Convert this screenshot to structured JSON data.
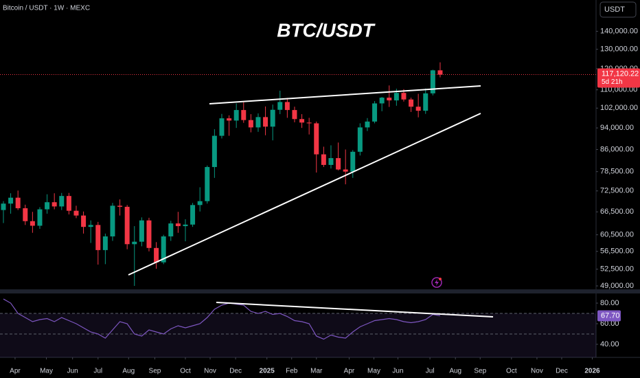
{
  "chart_data": {
    "type": "candlestick",
    "header": "Bitcoin / USDT · 1W · MEXC",
    "title": "BTC/USDT",
    "currency": "USDT",
    "log_scale": true,
    "up_color": "#089981",
    "down_color": "#f23645",
    "x": [
      0,
      1,
      2,
      3,
      4,
      5,
      6,
      7,
      8,
      9,
      10,
      11,
      12,
      13,
      14,
      15,
      16,
      17,
      18,
      19,
      20,
      21,
      22,
      23,
      24,
      25,
      26,
      27,
      28,
      29,
      30,
      31,
      32,
      33,
      34,
      35,
      36,
      37,
      38,
      39,
      40,
      41,
      42,
      43,
      44,
      45,
      46,
      47,
      48,
      49,
      50,
      51,
      52,
      53,
      54,
      55,
      56,
      57,
      58,
      59,
      60
    ],
    "open": [
      67000,
      68800,
      70500,
      67500,
      64000,
      62800,
      67200,
      69200,
      68000,
      71000,
      66800,
      65500,
      62500,
      63000,
      56800,
      60100,
      68200,
      67900,
      58200,
      58800,
      64200,
      57300,
      54000,
      60100,
      63400,
      62700,
      63100,
      68400,
      69500,
      80000,
      91000,
      97800,
      96900,
      101200,
      97100,
      94200,
      98300,
      94500,
      101300,
      104600,
      101200,
      97500,
      96100,
      95800,
      84300,
      80700,
      83000,
      79200,
      78500,
      85200,
      94200,
      96500,
      104000,
      106500,
      105300,
      108600,
      105700,
      102600,
      100900,
      108400,
      119200
    ],
    "high": [
      69500,
      71800,
      72600,
      68500,
      66500,
      67800,
      71500,
      71800,
      71900,
      71900,
      68200,
      66600,
      64200,
      63800,
      60800,
      69000,
      70000,
      68400,
      62700,
      65000,
      64900,
      58700,
      60500,
      64100,
      66500,
      64500,
      69000,
      73600,
      80500,
      93500,
      99600,
      99000,
      104000,
      104500,
      99500,
      99800,
      102700,
      103500,
      109600,
      106400,
      102600,
      99500,
      98000,
      96500,
      87000,
      87500,
      88500,
      86000,
      85800,
      95800,
      97900,
      105000,
      106800,
      112000,
      110500,
      110300,
      106500,
      108200,
      110600,
      119500,
      123200
    ],
    "low": [
      63500,
      66000,
      67000,
      63000,
      61000,
      62000,
      66000,
      67200,
      67000,
      65800,
      64800,
      60800,
      58500,
      53500,
      53600,
      59000,
      65500,
      57000,
      49000,
      57700,
      56500,
      52600,
      53600,
      59000,
      61000,
      58900,
      62500,
      66600,
      68800,
      76500,
      90000,
      91000,
      94000,
      96000,
      92300,
      92500,
      91200,
      89300,
      99500,
      98000,
      96200,
      94000,
      91500,
      78200,
      80000,
      79500,
      78900,
      74500,
      76500,
      83900,
      92800,
      95800,
      100700,
      102500,
      103000,
      104800,
      100400,
      98200,
      99600,
      107500,
      115800
    ],
    "close": [
      68800,
      70500,
      67500,
      64000,
      62800,
      67200,
      69200,
      68000,
      71000,
      66800,
      65500,
      62500,
      63000,
      56800,
      60100,
      68200,
      67900,
      58200,
      58800,
      64200,
      57300,
      54000,
      60100,
      63400,
      62700,
      63100,
      68400,
      69500,
      80000,
      91000,
      97800,
      96900,
      101200,
      97100,
      94200,
      98300,
      94500,
      101300,
      104600,
      101200,
      97500,
      96100,
      95800,
      84300,
      80700,
      83000,
      79200,
      78500,
      85200,
      94200,
      96500,
      104000,
      106500,
      105300,
      108600,
      105700,
      102600,
      100900,
      108400,
      119200,
      117120.22
    ],
    "xlim": [
      -0.47,
      81.42
    ],
    "xticks": [
      {
        "value": 1.6,
        "label": "Apr"
      },
      {
        "value": 5.9,
        "label": "May"
      },
      {
        "value": 9.5,
        "label": "Jun"
      },
      {
        "value": 13,
        "label": "Jul"
      },
      {
        "value": 17.2,
        "label": "Aug"
      },
      {
        "value": 20.8,
        "label": "Sep"
      },
      {
        "value": 25,
        "label": "Oct"
      },
      {
        "value": 28.4,
        "label": "Nov"
      },
      {
        "value": 31.9,
        "label": "Dec"
      },
      {
        "value": 36.2,
        "label": "2025"
      },
      {
        "value": 39.6,
        "label": "Feb"
      },
      {
        "value": 43,
        "label": "Mar"
      },
      {
        "value": 47.5,
        "label": "Apr"
      },
      {
        "value": 50.9,
        "label": "May"
      },
      {
        "value": 54.2,
        "label": "Jun"
      },
      {
        "value": 58.6,
        "label": "Jul"
      },
      {
        "value": 62.1,
        "label": "Aug"
      },
      {
        "value": 65.5,
        "label": "Sep"
      },
      {
        "value": 69.8,
        "label": "Oct"
      },
      {
        "value": 73.3,
        "label": "Nov"
      },
      {
        "value": 76.7,
        "label": "Dec"
      },
      {
        "value": 80.9,
        "label": "2026"
      }
    ],
    "ylim": [
      48450,
      159300
    ],
    "yticks": [
      {
        "value": 49000,
        "label": "49,000.00"
      },
      {
        "value": 52500,
        "label": "52,500.00"
      },
      {
        "value": 56500,
        "label": "56,500.00"
      },
      {
        "value": 60500,
        "label": "60,500.00"
      },
      {
        "value": 66500,
        "label": "66,500.00"
      },
      {
        "value": 72500,
        "label": "72,500.00"
      },
      {
        "value": 78500,
        "label": "78,500.00"
      },
      {
        "value": 86000,
        "label": "86,000.00"
      },
      {
        "value": 94000,
        "label": "94,000.00"
      },
      {
        "value": 102000,
        "label": "102,000.00"
      },
      {
        "value": 110000,
        "label": "110,000.00"
      },
      {
        "value": 120000,
        "label": "120,000.00"
      },
      {
        "value": 130000,
        "label": "130,000.00"
      },
      {
        "value": 140000,
        "label": "140,000.00"
      }
    ],
    "last_price": {
      "value": 117120.22,
      "label": "117,120.22",
      "countdown": "5d 21h"
    },
    "rsi": {
      "color": "#7e57c2",
      "values": [
        84,
        80,
        70,
        66,
        62,
        64,
        65,
        62,
        66,
        63,
        60,
        56,
        52,
        50,
        46,
        54,
        62,
        60,
        50,
        48,
        54,
        52,
        50,
        55,
        58,
        56,
        58,
        60,
        66,
        74,
        78,
        80,
        79,
        78,
        72,
        70,
        72,
        69,
        70,
        67,
        63,
        62,
        60,
        48,
        45,
        49,
        47,
        46,
        52,
        57,
        60,
        63,
        64,
        65,
        64,
        62,
        61,
        62,
        64,
        69,
        67.7
      ],
      "ylim": [
        27.3,
        88.7
      ],
      "yticks": [
        {
          "value": 40,
          "label": "40.00"
        },
        {
          "value": 60,
          "label": "60.00"
        },
        {
          "value": 80,
          "label": "80.00"
        }
      ],
      "bands": [
        70,
        50
      ],
      "last": {
        "value": 67.7,
        "label": "67.70"
      }
    }
  }
}
